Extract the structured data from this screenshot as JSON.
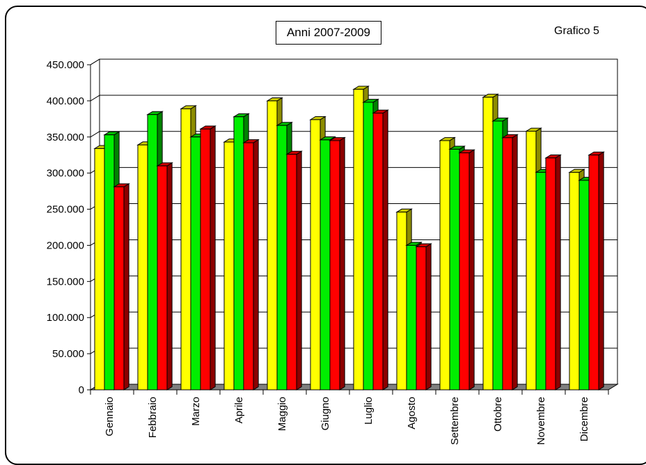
{
  "header": {
    "title": "Anni 2007-2009",
    "label": "Grafico 5"
  },
  "colors": {
    "series_2007": "#ffff00",
    "series_2008": "#00ee00",
    "series_2009": "#ff0000",
    "floor": "#808080"
  },
  "chart_data": {
    "type": "bar",
    "title": "Anni 2007-2009",
    "xlabel": "",
    "ylabel": "",
    "ylim": [
      0,
      450000
    ],
    "yticks": [
      0,
      50000,
      100000,
      150000,
      200000,
      250000,
      300000,
      350000,
      400000,
      450000
    ],
    "ytick_labels": [
      "0",
      "50.000",
      "100.000",
      "150.000",
      "200.000",
      "250.000",
      "300.000",
      "350.000",
      "400.000",
      "450.000"
    ],
    "grid": true,
    "categories": [
      "Gennaio",
      "Febbraio",
      "Marzo",
      "Aprile",
      "Maggio",
      "Giugno",
      "Luglio",
      "Agosto",
      "Settembre",
      "Ottobre",
      "Novembre",
      "Dicembre"
    ],
    "series": [
      {
        "values": [
          334000,
          339000,
          389000,
          343000,
          400000,
          374000,
          416000,
          246000,
          345000,
          405000,
          358000,
          301000
        ]
      },
      {
        "values": [
          353000,
          381000,
          350000,
          378000,
          366000,
          346000,
          398000,
          200000,
          333000,
          372000,
          301000,
          290000
        ]
      },
      {
        "values": [
          281000,
          310000,
          361000,
          342000,
          326000,
          345000,
          383000,
          198000,
          328000,
          349000,
          321000,
          325000
        ]
      }
    ]
  }
}
